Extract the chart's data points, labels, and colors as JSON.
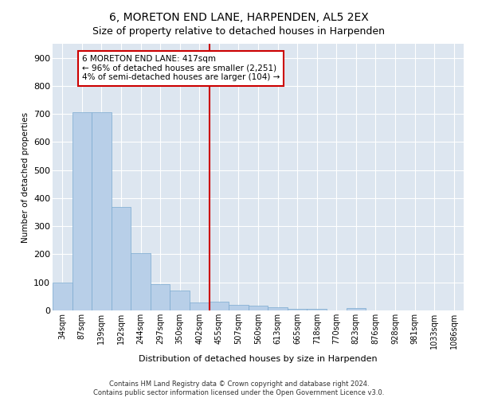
{
  "title": "6, MORETON END LANE, HARPENDEN, AL5 2EX",
  "subtitle": "Size of property relative to detached houses in Harpenden",
  "xlabel": "Distribution of detached houses by size in Harpenden",
  "ylabel": "Number of detached properties",
  "background_color": "#dde6f0",
  "bar_color": "#b8cfe8",
  "bar_edge_color": "#7aaad0",
  "grid_color": "#ffffff",
  "categories": [
    "34sqm",
    "87sqm",
    "139sqm",
    "192sqm",
    "244sqm",
    "297sqm",
    "350sqm",
    "402sqm",
    "455sqm",
    "507sqm",
    "560sqm",
    "613sqm",
    "665sqm",
    "718sqm",
    "770sqm",
    "823sqm",
    "876sqm",
    "928sqm",
    "981sqm",
    "1033sqm",
    "1086sqm"
  ],
  "values": [
    100,
    707,
    707,
    370,
    205,
    95,
    72,
    28,
    32,
    20,
    18,
    10,
    7,
    7,
    0,
    8,
    0,
    0,
    0,
    0,
    0
  ],
  "ylim": [
    0,
    950
  ],
  "yticks": [
    0,
    100,
    200,
    300,
    400,
    500,
    600,
    700,
    800,
    900
  ],
  "vline_position": 7.5,
  "vline_color": "#cc0000",
  "annotation_text": "6 MORETON END LANE: 417sqm\n← 96% of detached houses are smaller (2,251)\n4% of semi-detached houses are larger (104) →",
  "annotation_box_color": "#cc0000",
  "footer_line1": "Contains HM Land Registry data © Crown copyright and database right 2024.",
  "footer_line2": "Contains public sector information licensed under the Open Government Licence v3.0."
}
